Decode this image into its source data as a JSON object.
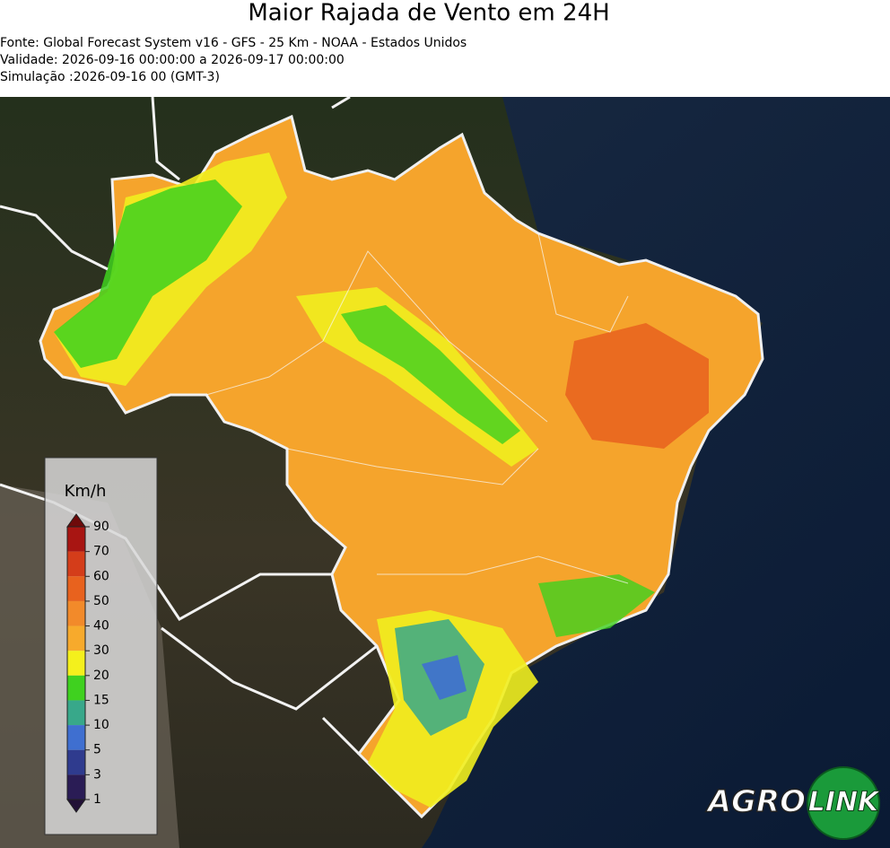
{
  "header": {
    "title": "Maior Rajada de Vento em 24H",
    "lines": [
      "Fonte: Global Forecast System v16 - GFS - 25 Km - NOAA - Estados Unidos",
      "Validade: 2026-09-16 00:00:00 a 2026-09-17 00:00:00",
      "Simulação :2026-09-16 00 (GMT-3)"
    ]
  },
  "legend": {
    "unit": "Km/h",
    "ticks": [
      90,
      70,
      60,
      50,
      40,
      30,
      20,
      15,
      10,
      5,
      3,
      1
    ],
    "colors": [
      "#6e0a0a",
      "#a81512",
      "#d43d1a",
      "#e8621e",
      "#f28a2a",
      "#f7aa2c",
      "#f4f01c",
      "#3fd11f",
      "#38a88a",
      "#3f6fd0",
      "#2f3b8e",
      "#2a1c55",
      "#221036"
    ]
  },
  "logo": {
    "left": "AGRO",
    "right": "LINK"
  }
}
